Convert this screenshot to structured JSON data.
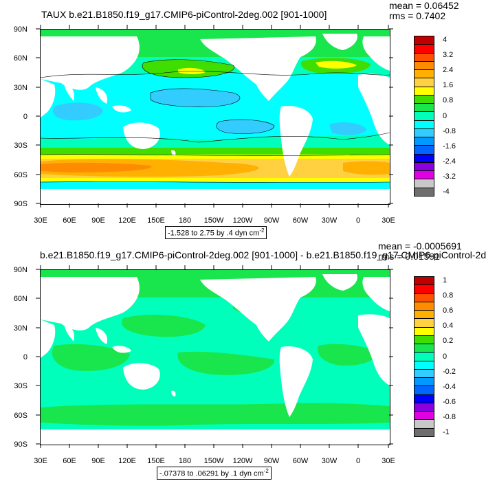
{
  "maps": [
    {
      "title": "TAUX b.e21.B1850.f19_g17.CMIP6-piControl-2deg.002 [901-1000]",
      "stat_mean": "mean = 0.06452",
      "stat_rms": "rms = 0.7402",
      "contour_info": "-1.528 to 2.75 by .4 dyn cm",
      "contour_exp": "-2",
      "lat_labels": [
        "90N",
        "60N",
        "30N",
        "0",
        "30S",
        "60S",
        "90S"
      ],
      "lon_labels": [
        "30E",
        "60E",
        "90E",
        "120E",
        "150E",
        "180",
        "150W",
        "120W",
        "90W",
        "60W",
        "30W",
        "0",
        "30E"
      ],
      "colorbar": {
        "labels": [
          "4",
          "3.2",
          "2.4",
          "1.6",
          "0.8",
          "0",
          "-0.8",
          "-1.6",
          "-2.4",
          "-3.2",
          "-4"
        ],
        "colors": [
          "#c00000",
          "#ff0000",
          "#ff5000",
          "#ff8c00",
          "#ffb000",
          "#ffd040",
          "#ffff00",
          "#40dd00",
          "#19e64d",
          "#00ffbb",
          "#00ffff",
          "#33ccff",
          "#0099ff",
          "#0066ff",
          "#0000ff",
          "#8c00e0",
          "#e000e0",
          "#c8c8c8",
          "#6e6e6e"
        ]
      }
    },
    {
      "title": "b.e21.B1850.f19_g17.CMIP6-piControl-2deg.002 [901-1000] - b.e21.B1850.f19_g17.CMIP6-piControl-2d",
      "stat_mean": "mean = -0.0005691",
      "stat_rms": "rms = 0.01591",
      "contour_info": "-.07378 to .06291 by .1 dyn cm",
      "contour_exp": "-2",
      "lat_labels": [
        "90N",
        "60N",
        "30N",
        "0",
        "30S",
        "60S",
        "90S"
      ],
      "lon_labels": [
        "30E",
        "60E",
        "90E",
        "120E",
        "150E",
        "180",
        "150W",
        "120W",
        "90W",
        "60W",
        "30W",
        "0",
        "30E"
      ],
      "colorbar": {
        "labels": [
          "1",
          "0.8",
          "0.6",
          "0.4",
          "0.2",
          "0",
          "-0.2",
          "-0.4",
          "-0.6",
          "-0.8",
          "-1"
        ],
        "colors": [
          "#c00000",
          "#ff0000",
          "#ff5000",
          "#ff8c00",
          "#ffb000",
          "#ffd040",
          "#ffff00",
          "#40dd00",
          "#19e64d",
          "#00ffbb",
          "#00ffff",
          "#33ccff",
          "#0099ff",
          "#0066ff",
          "#0000ff",
          "#8c00e0",
          "#e000e0",
          "#c8c8c8",
          "#6e6e6e"
        ]
      }
    }
  ]
}
